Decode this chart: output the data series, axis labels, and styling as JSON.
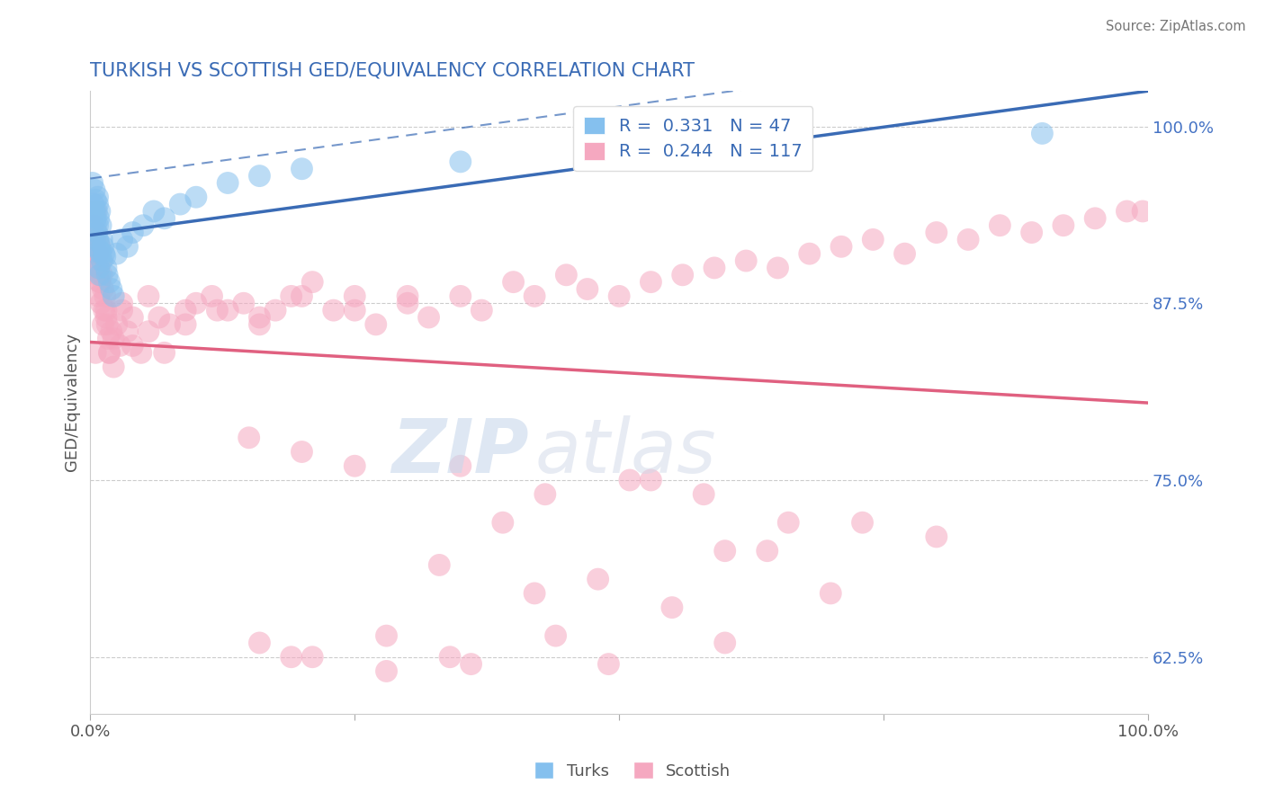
{
  "title": "TURKISH VS SCOTTISH GED/EQUIVALENCY CORRELATION CHART",
  "source": "Source: ZipAtlas.com",
  "ylabel": "GED/Equivalency",
  "turks_R": 0.331,
  "turks_N": 47,
  "scottish_R": 0.244,
  "scottish_N": 117,
  "turks_color": "#85C0EE",
  "scottish_color": "#F5A8C0",
  "turks_line_color": "#3A6BB5",
  "scottish_line_color": "#E06080",
  "legend_label_turks": "Turks",
  "legend_label_scottish": "Scottish",
  "xlim": [
    0.0,
    1.0
  ],
  "ylim": [
    0.585,
    1.025
  ],
  "yticks": [
    0.625,
    0.75,
    0.875,
    1.0
  ],
  "ytick_labels": [
    "62.5%",
    "75.0%",
    "87.5%",
    "100.0%"
  ],
  "xtick_labels_show": [
    "0.0%",
    "100.0%"
  ],
  "background_color": "#FFFFFF",
  "watermark_zip": "ZIP",
  "watermark_atlas": "atlas",
  "title_color": "#3A6BB5",
  "source_color": "#777777",
  "turks_x": [
    0.002,
    0.003,
    0.004,
    0.004,
    0.005,
    0.005,
    0.005,
    0.006,
    0.006,
    0.006,
    0.007,
    0.007,
    0.007,
    0.007,
    0.008,
    0.008,
    0.008,
    0.009,
    0.009,
    0.009,
    0.01,
    0.01,
    0.011,
    0.011,
    0.012,
    0.013,
    0.014,
    0.015,
    0.016,
    0.018,
    0.02,
    0.022,
    0.025,
    0.03,
    0.035,
    0.04,
    0.05,
    0.06,
    0.07,
    0.085,
    0.1,
    0.13,
    0.16,
    0.2,
    0.35,
    0.6,
    0.9
  ],
  "turks_y": [
    0.96,
    0.945,
    0.94,
    0.955,
    0.935,
    0.948,
    0.93,
    0.94,
    0.925,
    0.915,
    0.95,
    0.93,
    0.945,
    0.92,
    0.935,
    0.918,
    0.9,
    0.94,
    0.912,
    0.895,
    0.93,
    0.91,
    0.92,
    0.905,
    0.915,
    0.91,
    0.908,
    0.9,
    0.895,
    0.89,
    0.885,
    0.88,
    0.91,
    0.92,
    0.915,
    0.925,
    0.93,
    0.94,
    0.935,
    0.945,
    0.95,
    0.96,
    0.965,
    0.97,
    0.975,
    0.985,
    0.995
  ],
  "scottish_x": [
    0.003,
    0.004,
    0.005,
    0.005,
    0.006,
    0.006,
    0.007,
    0.007,
    0.008,
    0.008,
    0.009,
    0.009,
    0.01,
    0.01,
    0.011,
    0.012,
    0.013,
    0.014,
    0.015,
    0.016,
    0.017,
    0.018,
    0.02,
    0.022,
    0.025,
    0.028,
    0.03,
    0.035,
    0.04,
    0.048,
    0.055,
    0.065,
    0.075,
    0.09,
    0.1,
    0.115,
    0.13,
    0.145,
    0.16,
    0.175,
    0.19,
    0.21,
    0.23,
    0.25,
    0.27,
    0.3,
    0.32,
    0.35,
    0.37,
    0.4,
    0.42,
    0.45,
    0.47,
    0.5,
    0.53,
    0.56,
    0.59,
    0.62,
    0.65,
    0.68,
    0.71,
    0.74,
    0.77,
    0.8,
    0.83,
    0.86,
    0.89,
    0.92,
    0.95,
    0.98,
    0.995,
    0.005,
    0.007,
    0.009,
    0.012,
    0.015,
    0.018,
    0.022,
    0.03,
    0.04,
    0.055,
    0.07,
    0.09,
    0.12,
    0.16,
    0.2,
    0.25,
    0.3,
    0.2,
    0.15,
    0.25,
    0.35,
    0.43,
    0.51,
    0.58,
    0.66,
    0.53,
    0.73,
    0.8,
    0.33,
    0.48,
    0.42,
    0.55,
    0.39,
    0.6,
    0.64,
    0.7,
    0.44,
    0.36,
    0.28,
    0.19,
    0.16,
    0.21,
    0.28,
    0.34,
    0.49,
    0.6
  ],
  "scottish_y": [
    0.93,
    0.91,
    0.94,
    0.92,
    0.9,
    0.925,
    0.895,
    0.91,
    0.9,
    0.88,
    0.915,
    0.89,
    0.905,
    0.875,
    0.895,
    0.885,
    0.87,
    0.88,
    0.865,
    0.86,
    0.85,
    0.84,
    0.855,
    0.83,
    0.86,
    0.845,
    0.87,
    0.855,
    0.865,
    0.84,
    0.855,
    0.865,
    0.86,
    0.87,
    0.875,
    0.88,
    0.87,
    0.875,
    0.86,
    0.87,
    0.88,
    0.89,
    0.87,
    0.88,
    0.86,
    0.88,
    0.865,
    0.88,
    0.87,
    0.89,
    0.88,
    0.895,
    0.885,
    0.88,
    0.89,
    0.895,
    0.9,
    0.905,
    0.9,
    0.91,
    0.915,
    0.92,
    0.91,
    0.925,
    0.92,
    0.93,
    0.925,
    0.93,
    0.935,
    0.94,
    0.94,
    0.84,
    0.91,
    0.89,
    0.86,
    0.87,
    0.84,
    0.85,
    0.875,
    0.845,
    0.88,
    0.84,
    0.86,
    0.87,
    0.865,
    0.88,
    0.87,
    0.875,
    0.77,
    0.78,
    0.76,
    0.76,
    0.74,
    0.75,
    0.74,
    0.72,
    0.75,
    0.72,
    0.71,
    0.69,
    0.68,
    0.67,
    0.66,
    0.72,
    0.7,
    0.7,
    0.67,
    0.64,
    0.62,
    0.64,
    0.625,
    0.635,
    0.625,
    0.615,
    0.625,
    0.62,
    0.635
  ]
}
